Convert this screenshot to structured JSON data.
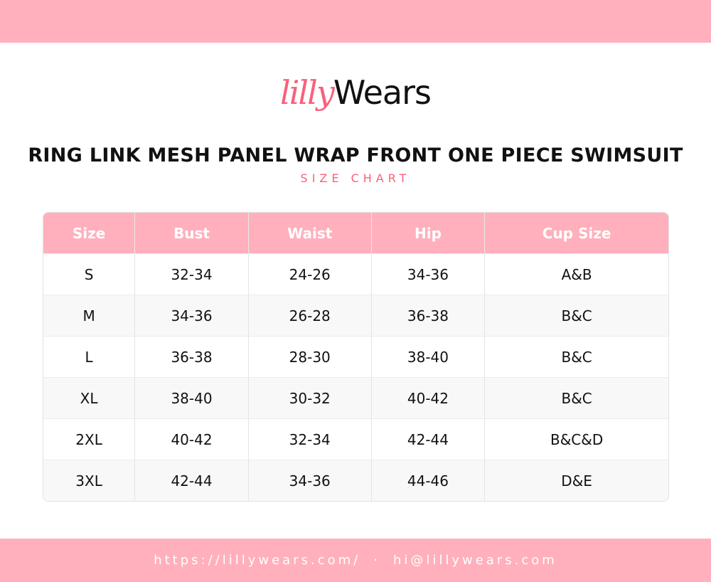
{
  "logo": {
    "part1": "lilly",
    "part2": "Wears",
    "accent": "#fb5f7b"
  },
  "title": "RING LINK MESH PANEL WRAP FRONT ONE PIECE SWIMSUIT",
  "subtitle": "SIZE CHART",
  "table": {
    "headers": [
      "Size",
      "Bust",
      "Waist",
      "Hip",
      "Cup Size"
    ],
    "rows": [
      [
        "S",
        "32-34",
        "24-26",
        "34-36",
        "A&B"
      ],
      [
        "M",
        "34-36",
        "26-28",
        "36-38",
        "B&C"
      ],
      [
        "L",
        "36-38",
        "28-30",
        "38-40",
        "B&C"
      ],
      [
        "XL",
        "38-40",
        "30-32",
        "40-42",
        "B&C"
      ],
      [
        "2XL",
        "40-42",
        "32-34",
        "42-44",
        "B&C&D"
      ],
      [
        "3XL",
        "42-44",
        "34-36",
        "44-46",
        "D&E"
      ]
    ]
  },
  "footer": {
    "website": "https://lillywears.com/",
    "separator": "·",
    "email": "hi@lillywears.com"
  },
  "colors": {
    "band": "#ffb0bc",
    "accent": "#fb5f7b"
  }
}
